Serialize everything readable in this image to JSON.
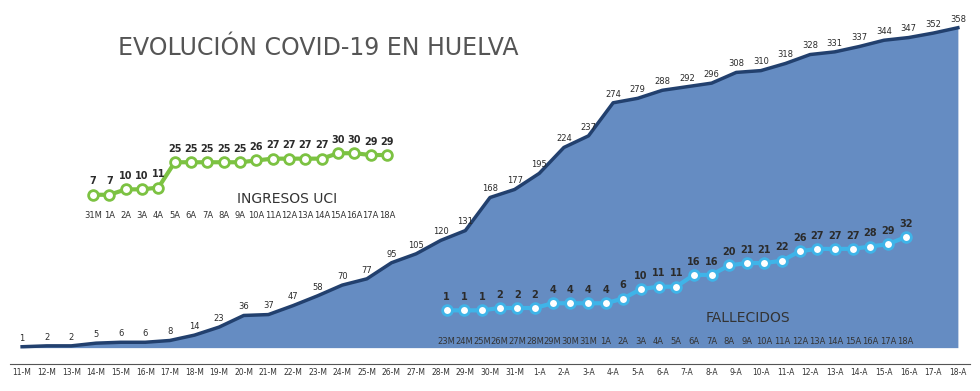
{
  "chart_data": [
    {
      "type": "area",
      "title": "EVOLUCIÓN COVID-19 EN HUELVA",
      "categories": [
        "11-M",
        "12-M",
        "13-M",
        "14-M",
        "15-M",
        "16-M",
        "17-M",
        "18-M",
        "19-M",
        "20-M",
        "21-M",
        "22-M",
        "23-M",
        "24-M",
        "25-M",
        "26-M",
        "27-M",
        "28-M",
        "29-M",
        "30-M",
        "31-M",
        "1-A",
        "2-A",
        "3-A",
        "4-A",
        "5-A",
        "6-A",
        "7-A",
        "8-A",
        "9-A",
        "10-A",
        "11-A",
        "12-A",
        "13-A",
        "14-A",
        "15-A",
        "16-A",
        "17-A",
        "18-A"
      ],
      "values": [
        1,
        2,
        2,
        5,
        6,
        6,
        8,
        14,
        23,
        36,
        37,
        47,
        58,
        70,
        77,
        95,
        105,
        120,
        131,
        168,
        177,
        195,
        224,
        237,
        274,
        279,
        288,
        292,
        296,
        308,
        310,
        318,
        328,
        331,
        337,
        344,
        347,
        352,
        358
      ],
      "color": "#4a78b8",
      "data_labels": true,
      "tick_labels": "x"
    },
    {
      "type": "line",
      "title": "INGRESOS UCI",
      "categories": [
        "31M",
        "1A",
        "2A",
        "3A",
        "4A",
        "5A",
        "6A",
        "7A",
        "8A",
        "9A",
        "10A",
        "11A",
        "12A",
        "13A",
        "14A",
        "15A",
        "16A",
        "17A",
        "18A"
      ],
      "values": [
        7,
        7,
        10,
        10,
        11,
        25,
        25,
        25,
        25,
        25,
        26,
        27,
        27,
        27,
        27,
        30,
        30,
        29,
        29
      ],
      "color": "#7cc242",
      "marker": "circle",
      "data_labels": true,
      "tick_labels": "x"
    },
    {
      "type": "line",
      "title": "FALLECIDOS",
      "categories": [
        "23M",
        "24M",
        "25M",
        "26M",
        "27M",
        "28M",
        "29M",
        "30M",
        "31M",
        "1A",
        "2A",
        "3A",
        "4A",
        "5A",
        "6A",
        "7A",
        "8A",
        "9A",
        "10A",
        "11A",
        "12A",
        "13A",
        "14A",
        "15A",
        "16A",
        "17A",
        "18A"
      ],
      "values": [
        1,
        1,
        1,
        2,
        2,
        2,
        4,
        4,
        4,
        4,
        6,
        10,
        11,
        11,
        16,
        16,
        20,
        21,
        21,
        22,
        26,
        27,
        27,
        27,
        28,
        29,
        32
      ],
      "color": "#3fb4e8",
      "marker": "circle",
      "data_labels": true,
      "tick_labels": "x"
    }
  ]
}
